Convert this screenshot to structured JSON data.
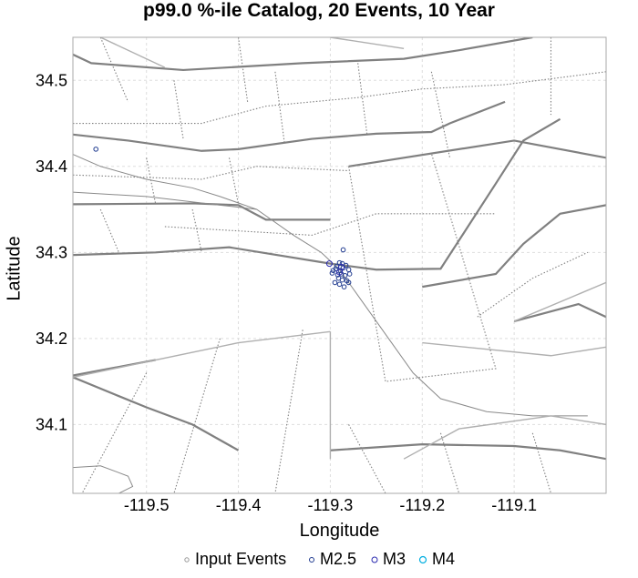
{
  "chart_data": {
    "type": "scatter",
    "title": "p99.0 %-ile Catalog, 20 Events, 10 Year",
    "xlabel": "Longitude",
    "ylabel": "Latitude",
    "xlim": [
      -119.58,
      -119.0
    ],
    "ylim": [
      34.02,
      34.55
    ],
    "x_ticks": [
      -119.5,
      -119.4,
      -119.3,
      -119.2,
      -119.1
    ],
    "x_tick_labels": [
      "-119.5",
      "-119.4",
      "-119.3",
      "-119.2",
      "-119.1"
    ],
    "y_ticks": [
      34.1,
      34.2,
      34.3,
      34.4,
      34.5
    ],
    "y_tick_labels": [
      "34.1",
      "34.2",
      "34.3",
      "34.4",
      "34.5"
    ],
    "grid": true,
    "legend_position": "bottom",
    "legend": [
      {
        "label": "Input Events",
        "color": "#999999"
      },
      {
        "label": "M2.5",
        "color": "#1f3a8f"
      },
      {
        "label": "M3",
        "color": "#2a2ab0"
      },
      {
        "label": "M4",
        "color": "#00aee0"
      }
    ],
    "series": [
      {
        "name": "M2.5",
        "color": "#1f3a8f",
        "points": [
          [
            -119.555,
            34.42
          ],
          [
            -119.286,
            34.303
          ],
          [
            -119.29,
            34.288
          ],
          [
            -119.287,
            34.287
          ],
          [
            -119.283,
            34.285
          ],
          [
            -119.294,
            34.281
          ],
          [
            -119.289,
            34.279
          ],
          [
            -119.286,
            34.282
          ],
          [
            -119.28,
            34.28
          ],
          [
            -119.298,
            34.276
          ],
          [
            -119.292,
            34.274
          ],
          [
            -119.288,
            34.275
          ],
          [
            -119.284,
            34.273
          ],
          [
            -119.279,
            34.275
          ],
          [
            -119.291,
            34.27
          ],
          [
            -119.287,
            34.268
          ],
          [
            -119.282,
            34.267
          ],
          [
            -119.295,
            34.265
          ],
          [
            -119.29,
            34.263
          ],
          [
            -119.285,
            34.26
          ],
          [
            -119.28,
            34.265
          ],
          [
            -119.293,
            34.284
          ],
          [
            -119.297,
            34.279
          ]
        ]
      },
      {
        "name": "M3",
        "color": "#2a2ab0",
        "points": [
          [
            -119.301,
            34.287
          ],
          [
            -119.29,
            34.277
          ],
          [
            -119.288,
            34.283
          ]
        ]
      }
    ],
    "fault_traces": {
      "color": "#808080",
      "lines": [
        {
          "style": "thick",
          "pts": [
            [
              -119.58,
              34.53
            ],
            [
              -119.56,
              34.52
            ],
            [
              -119.46,
              34.512
            ],
            [
              -119.33,
              34.52
            ],
            [
              -119.22,
              34.525
            ],
            [
              -119.16,
              34.535
            ],
            [
              -119.08,
              34.55
            ]
          ]
        },
        {
          "style": "thick",
          "pts": [
            [
              -119.58,
              34.437
            ],
            [
              -119.52,
              34.43
            ],
            [
              -119.44,
              34.418
            ],
            [
              -119.4,
              34.42
            ],
            [
              -119.32,
              34.432
            ],
            [
              -119.25,
              34.438
            ],
            [
              -119.19,
              34.44
            ],
            [
              -119.17,
              34.45
            ],
            [
              -119.11,
              34.475
            ]
          ]
        },
        {
          "style": "thick",
          "pts": [
            [
              -119.58,
              34.356
            ],
            [
              -119.45,
              34.357
            ],
            [
              -119.4,
              34.355
            ],
            [
              -119.37,
              34.338
            ],
            [
              -119.3,
              34.338
            ]
          ]
        },
        {
          "style": "thick",
          "pts": [
            [
              -119.58,
              34.297
            ],
            [
              -119.49,
              34.3
            ],
            [
              -119.41,
              34.306
            ],
            [
              -119.3,
              34.287
            ],
            [
              -119.25,
              34.28
            ],
            [
              -119.18,
              34.281
            ],
            [
              -119.12,
              34.38
            ],
            [
              -119.09,
              34.43
            ],
            [
              -119.05,
              34.455
            ]
          ]
        },
        {
          "style": "thick",
          "pts": [
            [
              -119.28,
              34.4
            ],
            [
              -119.1,
              34.43
            ],
            [
              -119.0,
              34.41
            ]
          ]
        },
        {
          "style": "thick",
          "pts": [
            [
              -119.2,
              34.26
            ],
            [
              -119.12,
              34.275
            ],
            [
              -119.09,
              34.31
            ],
            [
              -119.05,
              34.345
            ],
            [
              -119.0,
              34.355
            ]
          ]
        },
        {
          "style": "thick",
          "pts": [
            [
              -119.1,
              34.22
            ],
            [
              -119.03,
              34.24
            ],
            [
              -119.0,
              34.225
            ]
          ]
        },
        {
          "style": "thick",
          "pts": [
            [
              -119.58,
              34.155
            ],
            [
              -119.53,
              34.133
            ],
            [
              -119.5,
              34.12
            ],
            [
              -119.45,
              34.1
            ],
            [
              -119.4,
              34.07
            ]
          ]
        },
        {
          "style": "thick",
          "pts": [
            [
              -119.58,
              34.157
            ],
            [
              -119.49,
              34.175
            ]
          ]
        },
        {
          "style": "thick",
          "pts": [
            [
              -119.3,
              34.07
            ],
            [
              -119.2,
              34.077
            ],
            [
              -119.1,
              34.075
            ],
            [
              -119.05,
              34.07
            ],
            [
              -119.0,
              34.06
            ]
          ]
        },
        {
          "style": "thin",
          "pts": [
            [
              -119.58,
              34.414
            ],
            [
              -119.55,
              34.4
            ],
            [
              -119.5,
              34.385
            ],
            [
              -119.45,
              34.375
            ],
            [
              -119.42,
              34.365
            ],
            [
              -119.38,
              34.35
            ],
            [
              -119.34,
              34.32
            ],
            [
              -119.31,
              34.3
            ],
            [
              -119.29,
              34.28
            ],
            [
              -119.27,
              34.25
            ],
            [
              -119.25,
              34.22
            ],
            [
              -119.23,
              34.19
            ],
            [
              -119.21,
              34.16
            ],
            [
              -119.18,
              34.13
            ],
            [
              -119.13,
              34.115
            ],
            [
              -119.08,
              34.11
            ],
            [
              -119.02,
              34.11
            ]
          ]
        },
        {
          "style": "thin",
          "pts": [
            [
              -119.58,
              34.37
            ],
            [
              -119.5,
              34.365
            ],
            [
              -119.42,
              34.355
            ],
            [
              -119.38,
              34.35
            ]
          ]
        },
        {
          "style": "thin",
          "pts": [
            [
              -119.58,
              34.05
            ],
            [
              -119.55,
              34.052
            ],
            [
              -119.52,
              34.04
            ],
            [
              -119.515,
              34.028
            ],
            [
              -119.53,
              34.02
            ]
          ]
        },
        {
          "style": "light",
          "pts": [
            [
              -119.58,
              34.155
            ],
            [
              -119.4,
              34.195
            ],
            [
              -119.3,
              34.208
            ]
          ]
        },
        {
          "style": "light",
          "pts": [
            [
              -119.3,
              34.208
            ],
            [
              -119.3,
              34.06
            ]
          ]
        },
        {
          "style": "light",
          "pts": [
            [
              -119.22,
              34.06
            ],
            [
              -119.16,
              34.095
            ],
            [
              -119.06,
              34.11
            ],
            [
              -119.0,
              34.1
            ]
          ]
        },
        {
          "style": "light",
          "pts": [
            [
              -119.2,
              34.195
            ],
            [
              -119.06,
              34.18
            ],
            [
              -119.0,
              34.19
            ]
          ]
        },
        {
          "style": "light",
          "pts": [
            [
              -119.1,
              34.22
            ],
            [
              -119.0,
              34.265
            ]
          ]
        },
        {
          "style": "light",
          "pts": [
            [
              -119.55,
              34.55
            ],
            [
              -119.48,
              34.515
            ]
          ]
        },
        {
          "style": "light",
          "pts": [
            [
              -119.3,
              34.55
            ],
            [
              -119.22,
              34.537
            ]
          ]
        },
        {
          "style": "dotted",
          "pts": [
            [
              -119.58,
              34.45
            ],
            [
              -119.44,
              34.45
            ],
            [
              -119.37,
              34.47
            ],
            [
              -119.27,
              34.48
            ],
            [
              -119.2,
              34.49
            ],
            [
              -119.11,
              34.495
            ],
            [
              -119.0,
              34.51
            ]
          ]
        },
        {
          "style": "dotted",
          "pts": [
            [
              -119.58,
              34.39
            ],
            [
              -119.44,
              34.385
            ],
            [
              -119.38,
              34.4
            ],
            [
              -119.28,
              34.395
            ]
          ]
        },
        {
          "style": "dotted",
          "pts": [
            [
              -119.48,
              34.33
            ],
            [
              -119.32,
              34.32
            ],
            [
              -119.25,
              34.345
            ],
            [
              -119.12,
              34.345
            ]
          ]
        },
        {
          "style": "dotted",
          "pts": [
            [
              -119.28,
              34.4
            ],
            [
              -119.24,
              34.15
            ],
            [
              -119.12,
              34.165
            ],
            [
              -119.19,
              34.415
            ]
          ]
        },
        {
          "style": "dotted",
          "pts": [
            [
              -119.14,
              34.225
            ],
            [
              -119.08,
              34.27
            ],
            [
              -119.02,
              34.3
            ]
          ]
        },
        {
          "style": "dotted",
          "pts": [
            [
              -119.55,
              34.55
            ],
            [
              -119.52,
              34.475
            ]
          ]
        },
        {
          "style": "dotted",
          "pts": [
            [
              -119.47,
              34.5
            ],
            [
              -119.46,
              34.432
            ]
          ]
        },
        {
          "style": "dotted",
          "pts": [
            [
              -119.4,
              34.55
            ],
            [
              -119.39,
              34.475
            ]
          ]
        },
        {
          "style": "dotted",
          "pts": [
            [
              -119.36,
              34.51
            ],
            [
              -119.35,
              34.428
            ]
          ]
        },
        {
          "style": "dotted",
          "pts": [
            [
              -119.27,
              34.52
            ],
            [
              -119.26,
              34.437
            ]
          ]
        },
        {
          "style": "dotted",
          "pts": [
            [
              -119.19,
              34.51
            ],
            [
              -119.17,
              34.41
            ]
          ]
        },
        {
          "style": "dotted",
          "pts": [
            [
              -119.06,
              34.55
            ],
            [
              -119.06,
              34.46
            ]
          ]
        },
        {
          "style": "dotted",
          "pts": [
            [
              -119.5,
              34.41
            ],
            [
              -119.49,
              34.356
            ]
          ]
        },
        {
          "style": "dotted",
          "pts": [
            [
              -119.41,
              34.41
            ],
            [
              -119.4,
              34.356
            ]
          ]
        },
        {
          "style": "dotted",
          "pts": [
            [
              -119.55,
              34.35
            ],
            [
              -119.53,
              34.3
            ]
          ]
        },
        {
          "style": "dotted",
          "pts": [
            [
              -119.45,
              34.35
            ],
            [
              -119.44,
              34.3
            ]
          ]
        },
        {
          "style": "dotted",
          "pts": [
            [
              -119.5,
              34.16
            ],
            [
              -119.57,
              34.02
            ]
          ]
        },
        {
          "style": "dotted",
          "pts": [
            [
              -119.42,
              34.2
            ],
            [
              -119.47,
              34.02
            ]
          ]
        },
        {
          "style": "dotted",
          "pts": [
            [
              -119.33,
              34.21
            ],
            [
              -119.36,
              34.02
            ]
          ]
        },
        {
          "style": "dotted",
          "pts": [
            [
              -119.28,
              34.1
            ],
            [
              -119.24,
              34.02
            ]
          ]
        },
        {
          "style": "dotted",
          "pts": [
            [
              -119.18,
              34.09
            ],
            [
              -119.16,
              34.02
            ]
          ]
        },
        {
          "style": "dotted",
          "pts": [
            [
              -119.08,
              34.09
            ],
            [
              -119.06,
              34.02
            ]
          ]
        }
      ]
    }
  }
}
